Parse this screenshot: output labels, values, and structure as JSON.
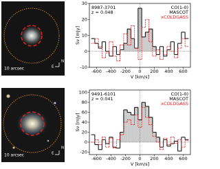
{
  "chart_data": [
    {
      "type": "line",
      "name": "8987-3701",
      "redshift": "z = 0.048",
      "legend_title": "CO(1-0)",
      "xlabel": "V [km/s]",
      "ylabel": "Sν [mJy]",
      "image_label": "10 arcsec",
      "compass": [
        "N",
        "E"
      ],
      "x": [
        -650,
        -600,
        -550,
        -500,
        -450,
        -400,
        -350,
        -300,
        -250,
        -200,
        -150,
        -100,
        -50,
        0,
        50,
        100,
        150,
        200,
        250,
        300,
        350,
        400,
        450,
        500,
        550,
        600,
        650
      ],
      "series": [
        {
          "name": "MASCOT",
          "color": "#000000",
          "values": [
            8,
            5,
            2,
            6,
            0,
            -3,
            3,
            -2,
            1,
            5,
            14,
            8,
            2,
            27,
            9,
            12,
            14,
            3,
            -2,
            3,
            -3,
            1,
            6,
            -2,
            5,
            12,
            8
          ]
        },
        {
          "name": "xCOLDGASS",
          "color": "#e41a1c",
          "values": [
            5,
            8,
            3,
            -4,
            -1,
            6,
            -3,
            -6,
            4,
            11,
            4,
            16,
            2,
            -5,
            15,
            20,
            6,
            -3,
            1,
            -5,
            -2,
            3,
            0,
            -4,
            2,
            8,
            3
          ]
        }
      ],
      "shade_xlim": [
        -200,
        200
      ],
      "xlim": [
        -700,
        700
      ],
      "xticks": [
        -600,
        -400,
        -200,
        0,
        200,
        400,
        600
      ],
      "ylim": [
        -10,
        30
      ],
      "yticks": [
        -10,
        0,
        10,
        20,
        30
      ]
    },
    {
      "type": "line",
      "name": "9491-6101",
      "redshift": "z = 0.041",
      "legend_title": "CO(1-0)",
      "xlabel": "V [km/s]",
      "ylabel": "Sν [mJy]",
      "image_label": "10 arcsec",
      "compass": [
        "N",
        "E"
      ],
      "x": [
        -650,
        -600,
        -550,
        -500,
        -450,
        -400,
        -350,
        -300,
        -250,
        -200,
        -150,
        -100,
        -50,
        0,
        50,
        100,
        150,
        200,
        250,
        300,
        350,
        400,
        450,
        500,
        550,
        600,
        650
      ],
      "series": [
        {
          "name": "MASCOT",
          "color": "#000000",
          "values": [
            15,
            -5,
            -15,
            5,
            -3,
            10,
            -10,
            -12,
            20,
            65,
            60,
            55,
            70,
            45,
            80,
            72,
            50,
            20,
            10,
            -10,
            5,
            -8,
            -3,
            2,
            -18,
            10,
            5
          ]
        },
        {
          "name": "xCOLDGASS",
          "color": "#e41a1c",
          "values": [
            0,
            5,
            -5,
            10,
            -10,
            8,
            -12,
            5,
            15,
            40,
            45,
            35,
            55,
            30,
            70,
            50,
            35,
            12,
            0,
            -15,
            8,
            -5,
            10,
            -2,
            5,
            -10,
            3
          ]
        }
      ],
      "shade_xlim": [
        -250,
        250
      ],
      "xlim": [
        -700,
        700
      ],
      "xticks": [
        -600,
        -400,
        -200,
        0,
        200,
        400,
        600
      ],
      "ylim": [
        -25,
        105
      ],
      "yticks": [
        -20,
        0,
        20,
        40,
        60,
        80,
        100
      ]
    }
  ]
}
